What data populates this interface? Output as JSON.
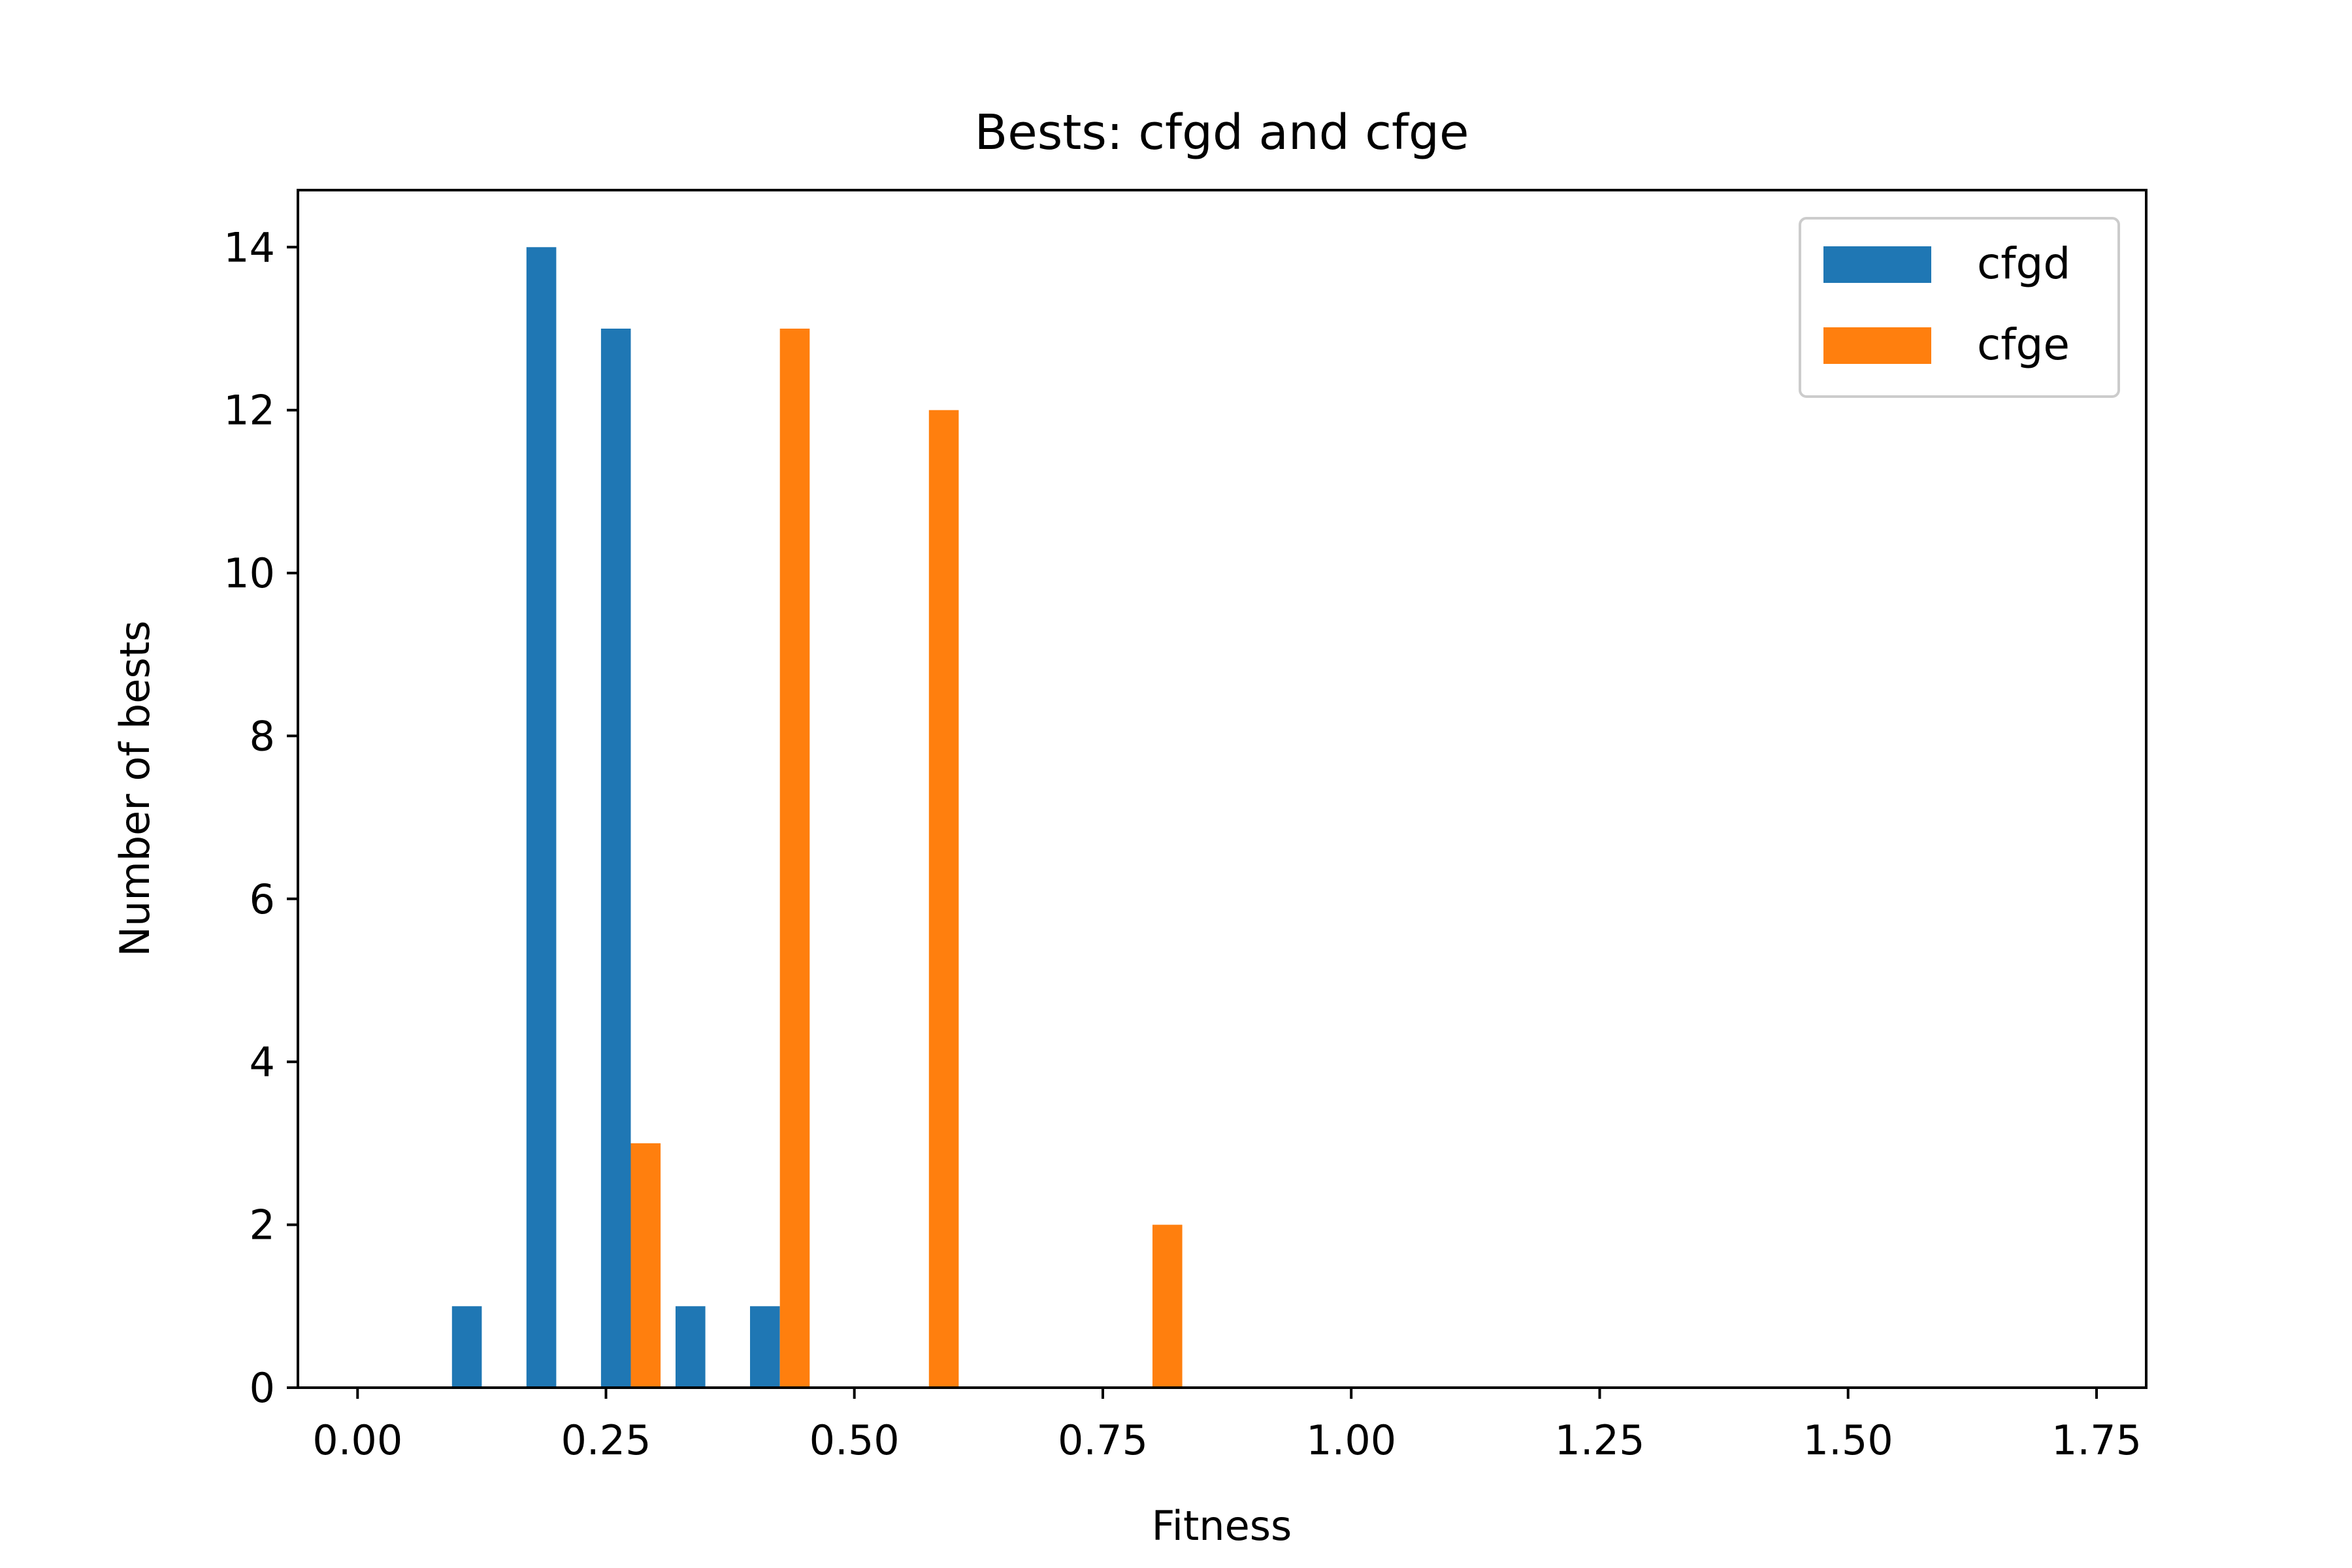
{
  "chart_data": {
    "type": "bar",
    "title": "Bests: cfgd and cfge",
    "xlabel": "Fitness",
    "ylabel": "Number of bests",
    "xlim": [
      -0.06,
      1.8
    ],
    "ylim": [
      0,
      14.7
    ],
    "xticks": [
      0.0,
      0.25,
      0.5,
      0.75,
      1.0,
      1.25,
      1.5,
      1.75
    ],
    "xtick_labels": [
      "0.00",
      "0.25",
      "0.50",
      "0.75",
      "1.00",
      "1.25",
      "1.50",
      "1.75"
    ],
    "yticks": [
      0,
      2,
      4,
      6,
      8,
      10,
      12,
      14
    ],
    "ytick_labels": [
      "0",
      "2",
      "4",
      "6",
      "8",
      "10",
      "12",
      "14"
    ],
    "grid": false,
    "legend_position": "top-right",
    "bar_width": 0.03,
    "series": [
      {
        "name": "cfgd",
        "color": "#1f77b4",
        "x": [
          0.11,
          0.185,
          0.26,
          0.335,
          0.41
        ],
        "values": [
          1,
          14,
          13,
          1,
          1
        ]
      },
      {
        "name": "cfge",
        "color": "#ff7f0e",
        "x": [
          0.29,
          0.44,
          0.59,
          0.815
        ],
        "values": [
          3,
          13,
          12,
          2
        ]
      }
    ]
  }
}
